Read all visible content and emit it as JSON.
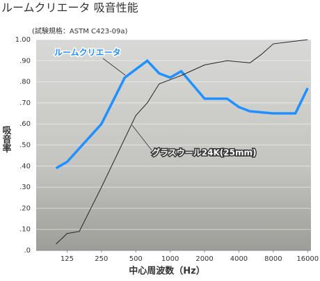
{
  "chart_data": {
    "type": "line",
    "title": "ルームクリエータ 吸音性能",
    "subtitle": "(試験規格：ASTM C423-09a)",
    "x_label": "中心周波数（Hz）",
    "y_label": "吸音率",
    "log_x": true,
    "grid": true,
    "xlim": [
      67,
      17100
    ],
    "ylim": [
      0,
      1
    ],
    "xticks": [
      125,
      250,
      500,
      1000,
      2000,
      4000,
      8000,
      16000
    ],
    "yticks": [
      {
        "value": 0,
        "label": ".0"
      },
      {
        "value": 0.1,
        "label": ".10"
      },
      {
        "value": 0.2,
        "label": ".20"
      },
      {
        "value": 0.3,
        "label": ".30"
      },
      {
        "value": 0.4,
        "label": ".40"
      },
      {
        "value": 0.5,
        "label": ".50"
      },
      {
        "value": 0.6,
        "label": ".60"
      },
      {
        "value": 0.7,
        "label": ".70"
      },
      {
        "value": 0.8,
        "label": ".80"
      },
      {
        "value": 0.9,
        "label": ".90"
      },
      {
        "value": 1,
        "label": "1.00"
      }
    ],
    "series": [
      {
        "name": "ルームクリエータ",
        "color": "#1e90ff",
        "x": [
          100,
          125,
          250,
          400,
          630,
          800,
          1000,
          1250,
          2000,
          3150,
          4000,
          5000,
          8000,
          12500,
          16000
        ],
        "values": [
          0.39,
          0.42,
          0.6,
          0.82,
          0.9,
          0.84,
          0.82,
          0.85,
          0.72,
          0.72,
          0.68,
          0.66,
          0.65,
          0.65,
          0.77
        ]
      },
      {
        "name": "グラスウール24K(25mm)",
        "color": "#222222",
        "x": [
          100,
          125,
          160,
          250,
          500,
          630,
          800,
          1250,
          2000,
          3150,
          5000,
          6300,
          8000,
          16000
        ],
        "values": [
          0.03,
          0.08,
          0.09,
          0.3,
          0.64,
          0.7,
          0.79,
          0.83,
          0.88,
          0.9,
          0.89,
          0.93,
          0.98,
          1.0
        ]
      }
    ]
  }
}
